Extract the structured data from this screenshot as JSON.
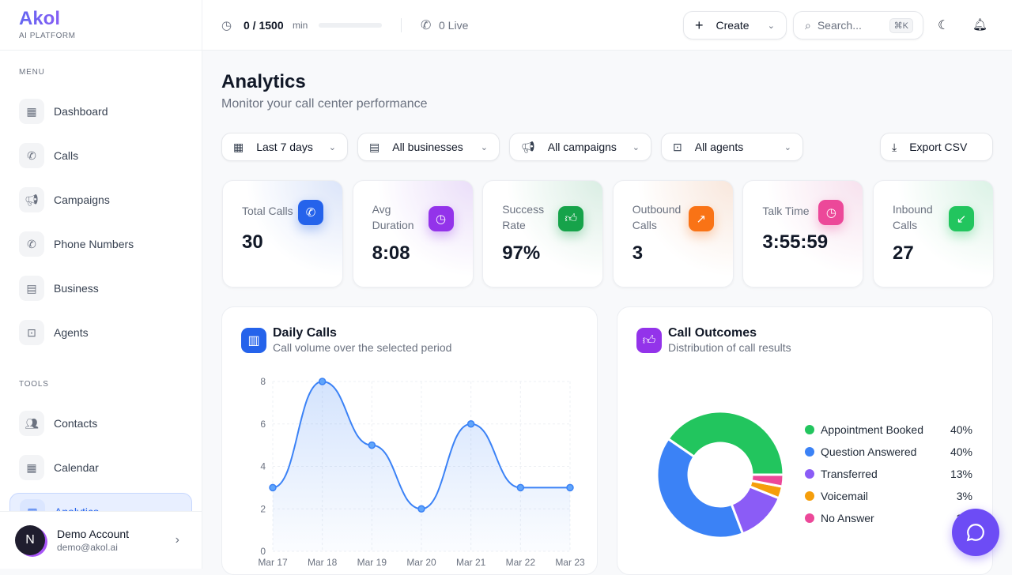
{
  "brand": {
    "name": "Akol",
    "tagline": "AI PLATFORM"
  },
  "sidebar": {
    "menu_label": "MENU",
    "tools_label": "TOOLS",
    "menu": [
      {
        "label": "Dashboard",
        "icon": "grid-icon"
      },
      {
        "label": "Calls",
        "icon": "phone-icon"
      },
      {
        "label": "Campaigns",
        "icon": "megaphone-icon"
      },
      {
        "label": "Phone Numbers",
        "icon": "phone-icon"
      },
      {
        "label": "Business",
        "icon": "building-icon"
      },
      {
        "label": "Agents",
        "icon": "bot-icon"
      }
    ],
    "tools": [
      {
        "label": "Contacts",
        "icon": "users-icon"
      },
      {
        "label": "Calendar",
        "icon": "calendar-icon"
      },
      {
        "label": "Analytics",
        "icon": "chart-icon",
        "active": true
      }
    ],
    "account": {
      "initial": "N",
      "name": "Demo Account",
      "email": "demo@akol.ai"
    }
  },
  "header": {
    "usage": "0 / 1500",
    "usage_unit": "min",
    "usage_progress": 0,
    "live": "0 Live",
    "create": "Create",
    "search_placeholder": "Search...",
    "shortcut": "⌘K"
  },
  "page": {
    "title": "Analytics",
    "subtitle": "Monitor your call center performance"
  },
  "filters": [
    {
      "label": "Last 7 days",
      "icon": "calendar-icon"
    },
    {
      "label": "All businesses",
      "icon": "building-icon"
    },
    {
      "label": "All campaigns",
      "icon": "megaphone-icon"
    },
    {
      "label": "All agents",
      "icon": "bot-icon"
    }
  ],
  "export_label": "Export CSV",
  "stats": [
    {
      "label": "Total Calls",
      "value": "30",
      "color": "#2563eb"
    },
    {
      "label": "Avg Duration",
      "value": "8:08",
      "color": "#9333ea"
    },
    {
      "label": "Success Rate",
      "value": "97%",
      "color": "#16a34a"
    },
    {
      "label": "Outbound Calls",
      "value": "3",
      "color": "#f97316"
    },
    {
      "label": "Talk Time",
      "value": "3:55:59",
      "color": "#ec4899"
    },
    {
      "label": "Inbound Calls",
      "value": "27",
      "color": "#22c55e"
    }
  ],
  "daily": {
    "title": "Daily Calls",
    "subtitle": "Call volume over the selected period"
  },
  "outcomes": {
    "title": "Call Outcomes",
    "subtitle": "Distribution of call results"
  },
  "chart_data": [
    {
      "type": "area",
      "categories": [
        "Mar 17",
        "Mar 18",
        "Mar 19",
        "Mar 20",
        "Mar 21",
        "Mar 22",
        "Mar 23"
      ],
      "values": [
        3,
        8,
        5,
        2,
        6,
        3,
        3
      ],
      "ylim": [
        0,
        8
      ],
      "yticks": [
        "0",
        "2",
        "4",
        "6",
        "8"
      ],
      "grid": true,
      "color": "#3b82f6"
    },
    {
      "type": "pie",
      "donut": true,
      "legend": "right",
      "slices": [
        {
          "label": "Appointment Booked",
          "pct": "40%",
          "value": 40,
          "color": "#22c55e"
        },
        {
          "label": "Question Answered",
          "pct": "40%",
          "value": 40,
          "color": "#3b82f6"
        },
        {
          "label": "Transferred",
          "pct": "13%",
          "value": 13,
          "color": "#8b5cf6"
        },
        {
          "label": "Voicemail",
          "pct": "3%",
          "value": 3,
          "color": "#f59e0b"
        },
        {
          "label": "No Answer",
          "pct": "3%",
          "value": 3,
          "color": "#ec4899"
        }
      ]
    }
  ]
}
